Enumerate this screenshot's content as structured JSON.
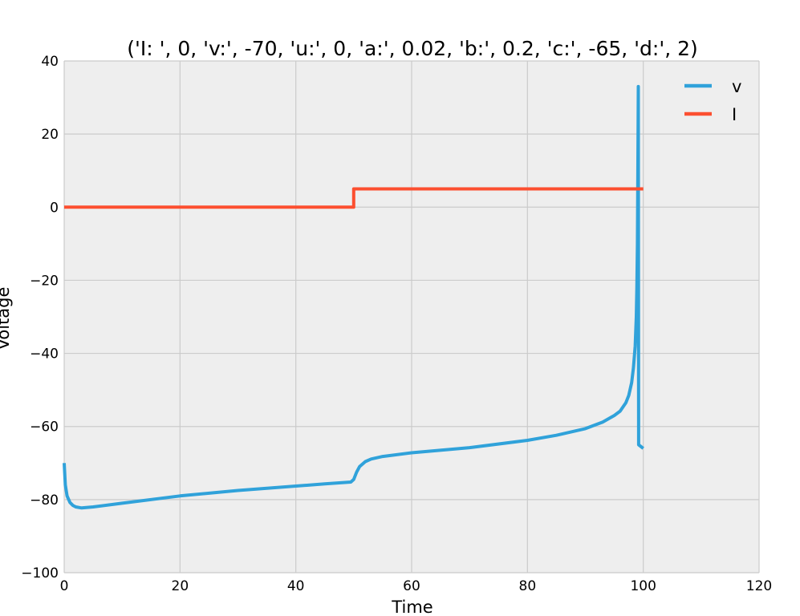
{
  "chart_data": {
    "type": "line",
    "title": "('I: ', 0, 'v:', -70, 'u:', 0, 'a:', 0.02, 'b:', 0.2, 'c:', -65, 'd:', 2)",
    "xlabel": "Time",
    "ylabel": "Voltage",
    "xlim": [
      0,
      120
    ],
    "ylim": [
      -100,
      40
    ],
    "xticks": [
      0,
      20,
      40,
      60,
      80,
      100,
      120
    ],
    "yticks": [
      -100,
      -80,
      -60,
      -40,
      -20,
      0,
      20,
      40
    ],
    "xtick_labels": [
      "0",
      "20",
      "40",
      "60",
      "80",
      "100",
      "120"
    ],
    "ytick_labels": [
      "−100",
      "−80",
      "−60",
      "−40",
      "−20",
      "0",
      "20",
      "40"
    ],
    "grid": true,
    "legend_position": "top-right",
    "colors": {
      "plot_background": "#eeeeee",
      "grid": "#cbcbcb"
    },
    "series": [
      {
        "name": "v",
        "color": "#30a2da",
        "x": [
          0,
          0.2,
          0.5,
          1,
          1.5,
          2,
          3,
          5,
          10,
          20,
          30,
          40,
          45,
          49.5,
          50,
          50.5,
          51,
          52,
          53,
          55,
          60,
          70,
          80,
          85,
          90,
          93,
          95,
          96,
          97,
          97.5,
          98,
          98.3,
          98.6,
          98.8,
          98.9,
          99.0,
          99.05,
          99.1,
          99.15,
          99.2,
          100
        ],
        "y": [
          -70,
          -76,
          -79,
          -80.8,
          -81.6,
          -82,
          -82.3,
          -82,
          -81,
          -79,
          -77.5,
          -76.3,
          -75.7,
          -75.2,
          -74.5,
          -72.5,
          -71,
          -69.6,
          -68.9,
          -68.2,
          -67.2,
          -65.8,
          -63.8,
          -62.4,
          -60.6,
          -58.8,
          -57,
          -55.8,
          -53.5,
          -51.5,
          -48,
          -44,
          -38,
          -30,
          -22,
          -10,
          5,
          20,
          33,
          -65,
          -66
        ]
      },
      {
        "name": "I",
        "color": "#fc4f30",
        "x": [
          0,
          50,
          50,
          100
        ],
        "y": [
          0,
          0,
          5,
          5
        ]
      }
    ]
  }
}
